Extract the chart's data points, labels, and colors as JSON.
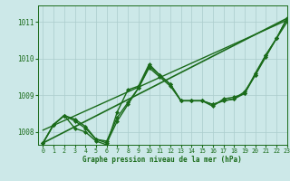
{
  "title": "Graphe pression niveau de la mer (hPa)",
  "bg_color": "#cce8e8",
  "grid_color": "#aacccc",
  "line_color": "#1a6b1a",
  "xlim": [
    -0.5,
    23
  ],
  "ylim": [
    1007.65,
    1011.45
  ],
  "yticks": [
    1008,
    1009,
    1010,
    1011
  ],
  "xticks": [
    0,
    1,
    2,
    3,
    4,
    5,
    6,
    7,
    8,
    9,
    10,
    11,
    12,
    13,
    14,
    15,
    16,
    17,
    18,
    19,
    20,
    21,
    22,
    23
  ],
  "lines": [
    {
      "x": [
        0,
        1,
        2,
        3,
        4,
        5,
        6,
        7,
        8,
        9,
        10,
        11,
        12,
        13,
        14,
        15,
        16,
        17,
        18,
        19,
        20,
        21,
        22,
        23
      ],
      "y": [
        1007.7,
        1008.2,
        1008.45,
        1008.3,
        1008.1,
        1007.8,
        1007.7,
        1008.3,
        1008.75,
        1009.2,
        1009.8,
        1009.55,
        1009.3,
        1008.85,
        1008.85,
        1008.85,
        1008.75,
        1008.85,
        1008.9,
        1009.05,
        1009.55,
        1010.1,
        1010.55,
        1011.1
      ],
      "marker": "D",
      "markersize": 2.0,
      "linewidth": 1.0
    },
    {
      "x": [
        0,
        1,
        2,
        3,
        4,
        5,
        6,
        7,
        8,
        9,
        10,
        11,
        12,
        13,
        14,
        15,
        16,
        17,
        18,
        19,
        20,
        21,
        22,
        23
      ],
      "y": [
        1007.7,
        1008.2,
        1008.45,
        1008.1,
        1008.0,
        1007.75,
        1007.65,
        1008.55,
        1009.15,
        1009.25,
        1009.85,
        1009.55,
        1009.3,
        1008.85,
        1008.85,
        1008.85,
        1008.75,
        1008.85,
        1008.9,
        1009.1,
        1009.55,
        1010.05,
        1010.55,
        1011.1
      ],
      "marker": "D",
      "markersize": 2.0,
      "linewidth": 1.0
    },
    {
      "x": [
        0,
        1,
        2,
        3,
        4,
        5,
        6,
        7,
        8,
        9,
        10,
        11,
        12,
        13,
        14,
        15,
        16,
        17,
        18,
        19,
        20,
        21,
        22,
        23
      ],
      "y": [
        1007.7,
        1008.2,
        1008.45,
        1008.35,
        1008.15,
        1007.8,
        1007.75,
        1008.4,
        1008.8,
        1009.2,
        1009.75,
        1009.5,
        1009.25,
        1008.85,
        1008.85,
        1008.85,
        1008.7,
        1008.9,
        1008.95,
        1009.05,
        1009.6,
        1010.1,
        1010.55,
        1011.0
      ],
      "marker": "D",
      "markersize": 2.0,
      "linewidth": 1.0
    },
    {
      "x": [
        0,
        23
      ],
      "y": [
        1007.7,
        1011.1
      ],
      "marker": null,
      "markersize": 0,
      "linewidth": 1.2
    },
    {
      "x": [
        0,
        23
      ],
      "y": [
        1008.05,
        1011.05
      ],
      "marker": null,
      "markersize": 0,
      "linewidth": 1.0
    }
  ]
}
